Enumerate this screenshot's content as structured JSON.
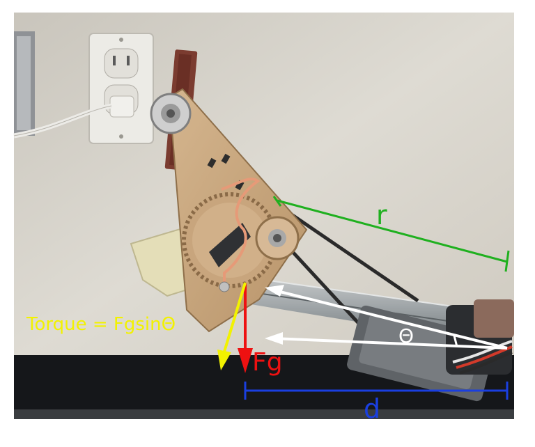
{
  "labels": {
    "radius": "r",
    "angle": "Θ",
    "torque": "Torque = FgsinΘ",
    "gravity": "Fg",
    "distance": "d"
  },
  "colors": {
    "radius": "#1fb01f",
    "torque": "#f2f200",
    "gravity": "#ee1111",
    "distance": "#1a3fe0",
    "angle": "#ffffff"
  },
  "icons": {
    "wall_outlet": "wall-outlet-icon",
    "servo": "servo-motor-icon",
    "gear": "gear-icon"
  }
}
